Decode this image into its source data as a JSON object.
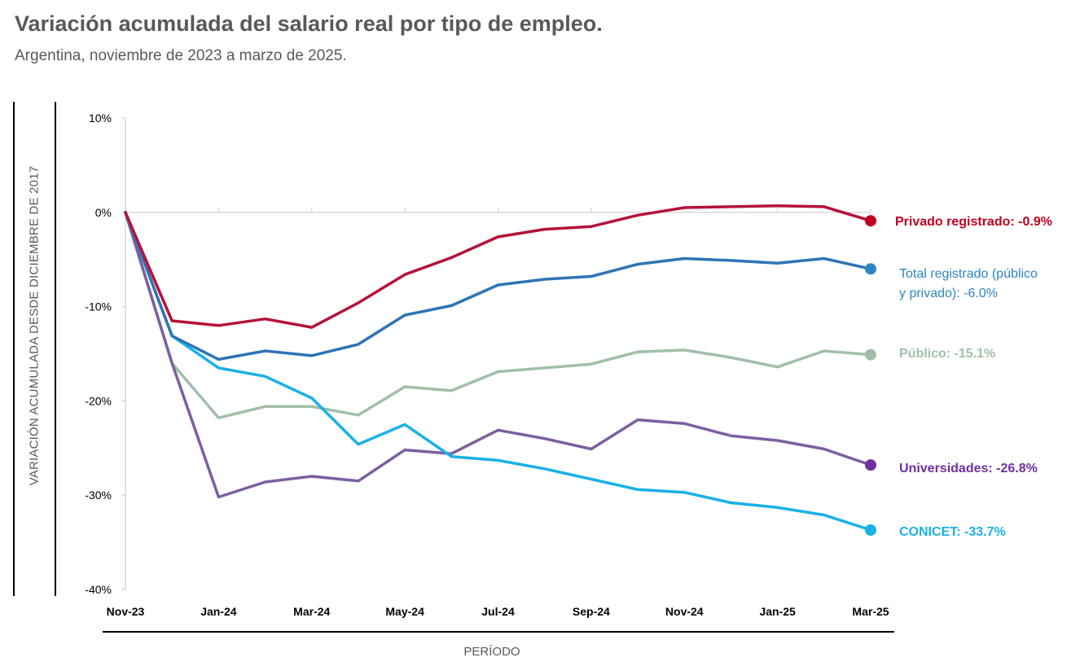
{
  "chart_data": {
    "type": "line",
    "title": "Variación acumulada del salario real por tipo de empleo.",
    "subtitle": "Argentina, noviembre de 2023 a marzo de 2025.",
    "ylabel": "VARIACIÓN ACUMULADA DESDE DICIEMBRE DE 2017",
    "xlabel": "PERÍODO",
    "ylim": [
      -40,
      10
    ],
    "yticks": [
      10,
      0,
      -10,
      -20,
      -30,
      -40
    ],
    "ytick_labels": [
      "10%",
      "0%",
      "-10%",
      "-20%",
      "-30%",
      "-40%"
    ],
    "x": [
      "Nov-23",
      "Dec-23",
      "Jan-24",
      "Feb-24",
      "Mar-24",
      "Apr-24",
      "May-24",
      "Jun-24",
      "Jul-24",
      "Aug-24",
      "Sep-24",
      "Oct-24",
      "Nov-24",
      "Dec-24",
      "Jan-25",
      "Feb-25",
      "Mar-25"
    ],
    "xtick_labels": [
      {
        "index": 0,
        "label": "Nov-23"
      },
      {
        "index": 2,
        "label": "Jan-24"
      },
      {
        "index": 4,
        "label": "Mar-24"
      },
      {
        "index": 6,
        "label": "May-24"
      },
      {
        "index": 8,
        "label": "Jul-24"
      },
      {
        "index": 10,
        "label": "Sep-24"
      },
      {
        "index": 12,
        "label": "Nov-24"
      },
      {
        "index": 14,
        "label": "Jan-25"
      },
      {
        "index": 16,
        "label": "Mar-25"
      }
    ],
    "series": [
      {
        "name": "Privado registrado",
        "color": "#b5123a",
        "label_lines": [
          "Privado registrado: -0.9%"
        ],
        "values": [
          0,
          -11.5,
          -12.0,
          -11.3,
          -12.2,
          -9.6,
          -6.6,
          -4.8,
          -2.6,
          -1.8,
          -1.5,
          -0.3,
          0.5,
          0.6,
          0.7,
          0.6,
          -0.9
        ]
      },
      {
        "name": "Total registrado (público y privado)",
        "color": "#2e74b5",
        "label_lines": [
          "Total registrado (público",
          "y privado): -6.0%"
        ],
        "values": [
          0,
          -13.1,
          -15.6,
          -14.7,
          -15.2,
          -14.0,
          -10.9,
          -9.9,
          -7.7,
          -7.1,
          -6.8,
          -5.5,
          -4.9,
          -5.1,
          -5.4,
          -4.9,
          -6.0
        ]
      },
      {
        "name": "Público",
        "color": "#a1bfa8",
        "label_lines": [
          "Público: -15.1%"
        ],
        "values": [
          0,
          -16.0,
          -21.8,
          -20.6,
          -20.6,
          -21.5,
          -18.5,
          -18.9,
          -16.9,
          -16.5,
          -16.1,
          -14.8,
          -14.6,
          -15.4,
          -16.4,
          -14.7,
          -15.1
        ]
      },
      {
        "name": "Universidades",
        "color": "#7d5fa0",
        "label_lines": [
          "Universidades: -26.8%"
        ],
        "values": [
          0,
          -16.0,
          -30.2,
          -28.6,
          -28.0,
          -28.5,
          -25.2,
          -25.6,
          -23.1,
          -24.0,
          -25.1,
          -22.0,
          -22.4,
          -23.7,
          -24.2,
          -25.1,
          -26.8
        ]
      },
      {
        "name": "CONICET",
        "color": "#1ab0e8",
        "label_lines": [
          "CONICET: -33.7%"
        ],
        "values": [
          0,
          -13.1,
          -16.5,
          -17.4,
          -19.7,
          -24.6,
          -22.5,
          -25.9,
          -26.3,
          -27.2,
          -28.3,
          -29.4,
          -29.7,
          -30.8,
          -31.3,
          -32.1,
          -33.7
        ]
      }
    ]
  },
  "legend_colors": {
    "privado": "#c00020",
    "total": "#2e86c1",
    "publico": "#a1bfa8",
    "universidades": "#7030a0",
    "conicet": "#1ab0e8"
  }
}
